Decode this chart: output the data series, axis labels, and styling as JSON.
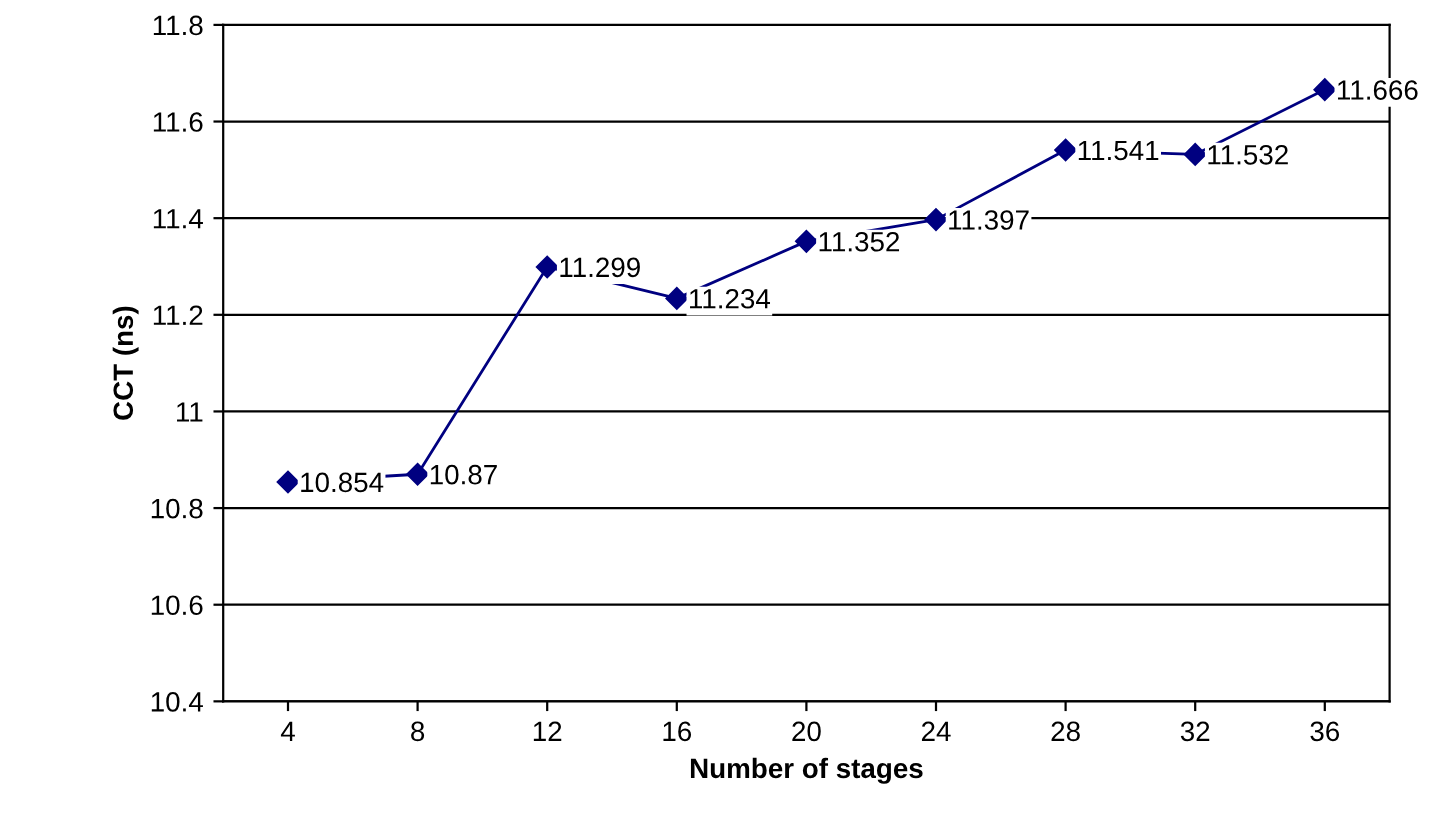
{
  "chart_data": {
    "type": "line",
    "xlabel": "Number of stages",
    "ylabel": "CCT (ns)",
    "categories": [
      "4",
      "8",
      "12",
      "16",
      "20",
      "24",
      "28",
      "32",
      "36"
    ],
    "series": [
      {
        "color": "#000080",
        "values": [
          10.854,
          10.87,
          11.299,
          11.234,
          11.352,
          11.397,
          11.541,
          11.532,
          11.666
        ]
      }
    ],
    "ylim": [
      10.4,
      11.8
    ],
    "yticks": [
      10.4,
      10.6,
      10.8,
      11,
      11.2,
      11.4,
      11.6,
      11.8
    ],
    "grid": "y",
    "marker": "diamond",
    "line_style": "solid",
    "data_labels": true
  }
}
